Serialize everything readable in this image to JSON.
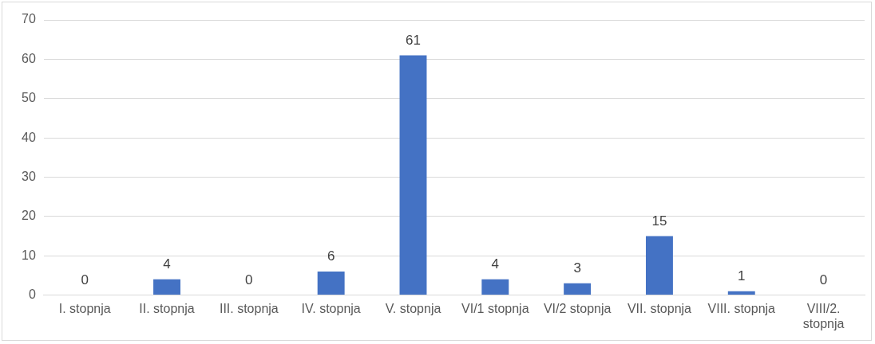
{
  "chart_data": {
    "type": "bar",
    "categories": [
      "I. stopnja",
      "II. stopnja",
      "III. stopnja",
      "IV. stopnja",
      "V. stopnja",
      "VI/1 stopnja",
      "VI/2 stopnja",
      "VII. stopnja",
      "VIII. stopnja",
      "VIII/2. stopnja"
    ],
    "values": [
      0,
      4,
      0,
      6,
      61,
      4,
      3,
      15,
      1,
      0
    ],
    "color": "#4472c4",
    "ylim": [
      0,
      70
    ],
    "yticks": [
      0,
      10,
      20,
      30,
      40,
      50,
      60,
      70
    ],
    "grid": "y",
    "data_labels": true
  }
}
